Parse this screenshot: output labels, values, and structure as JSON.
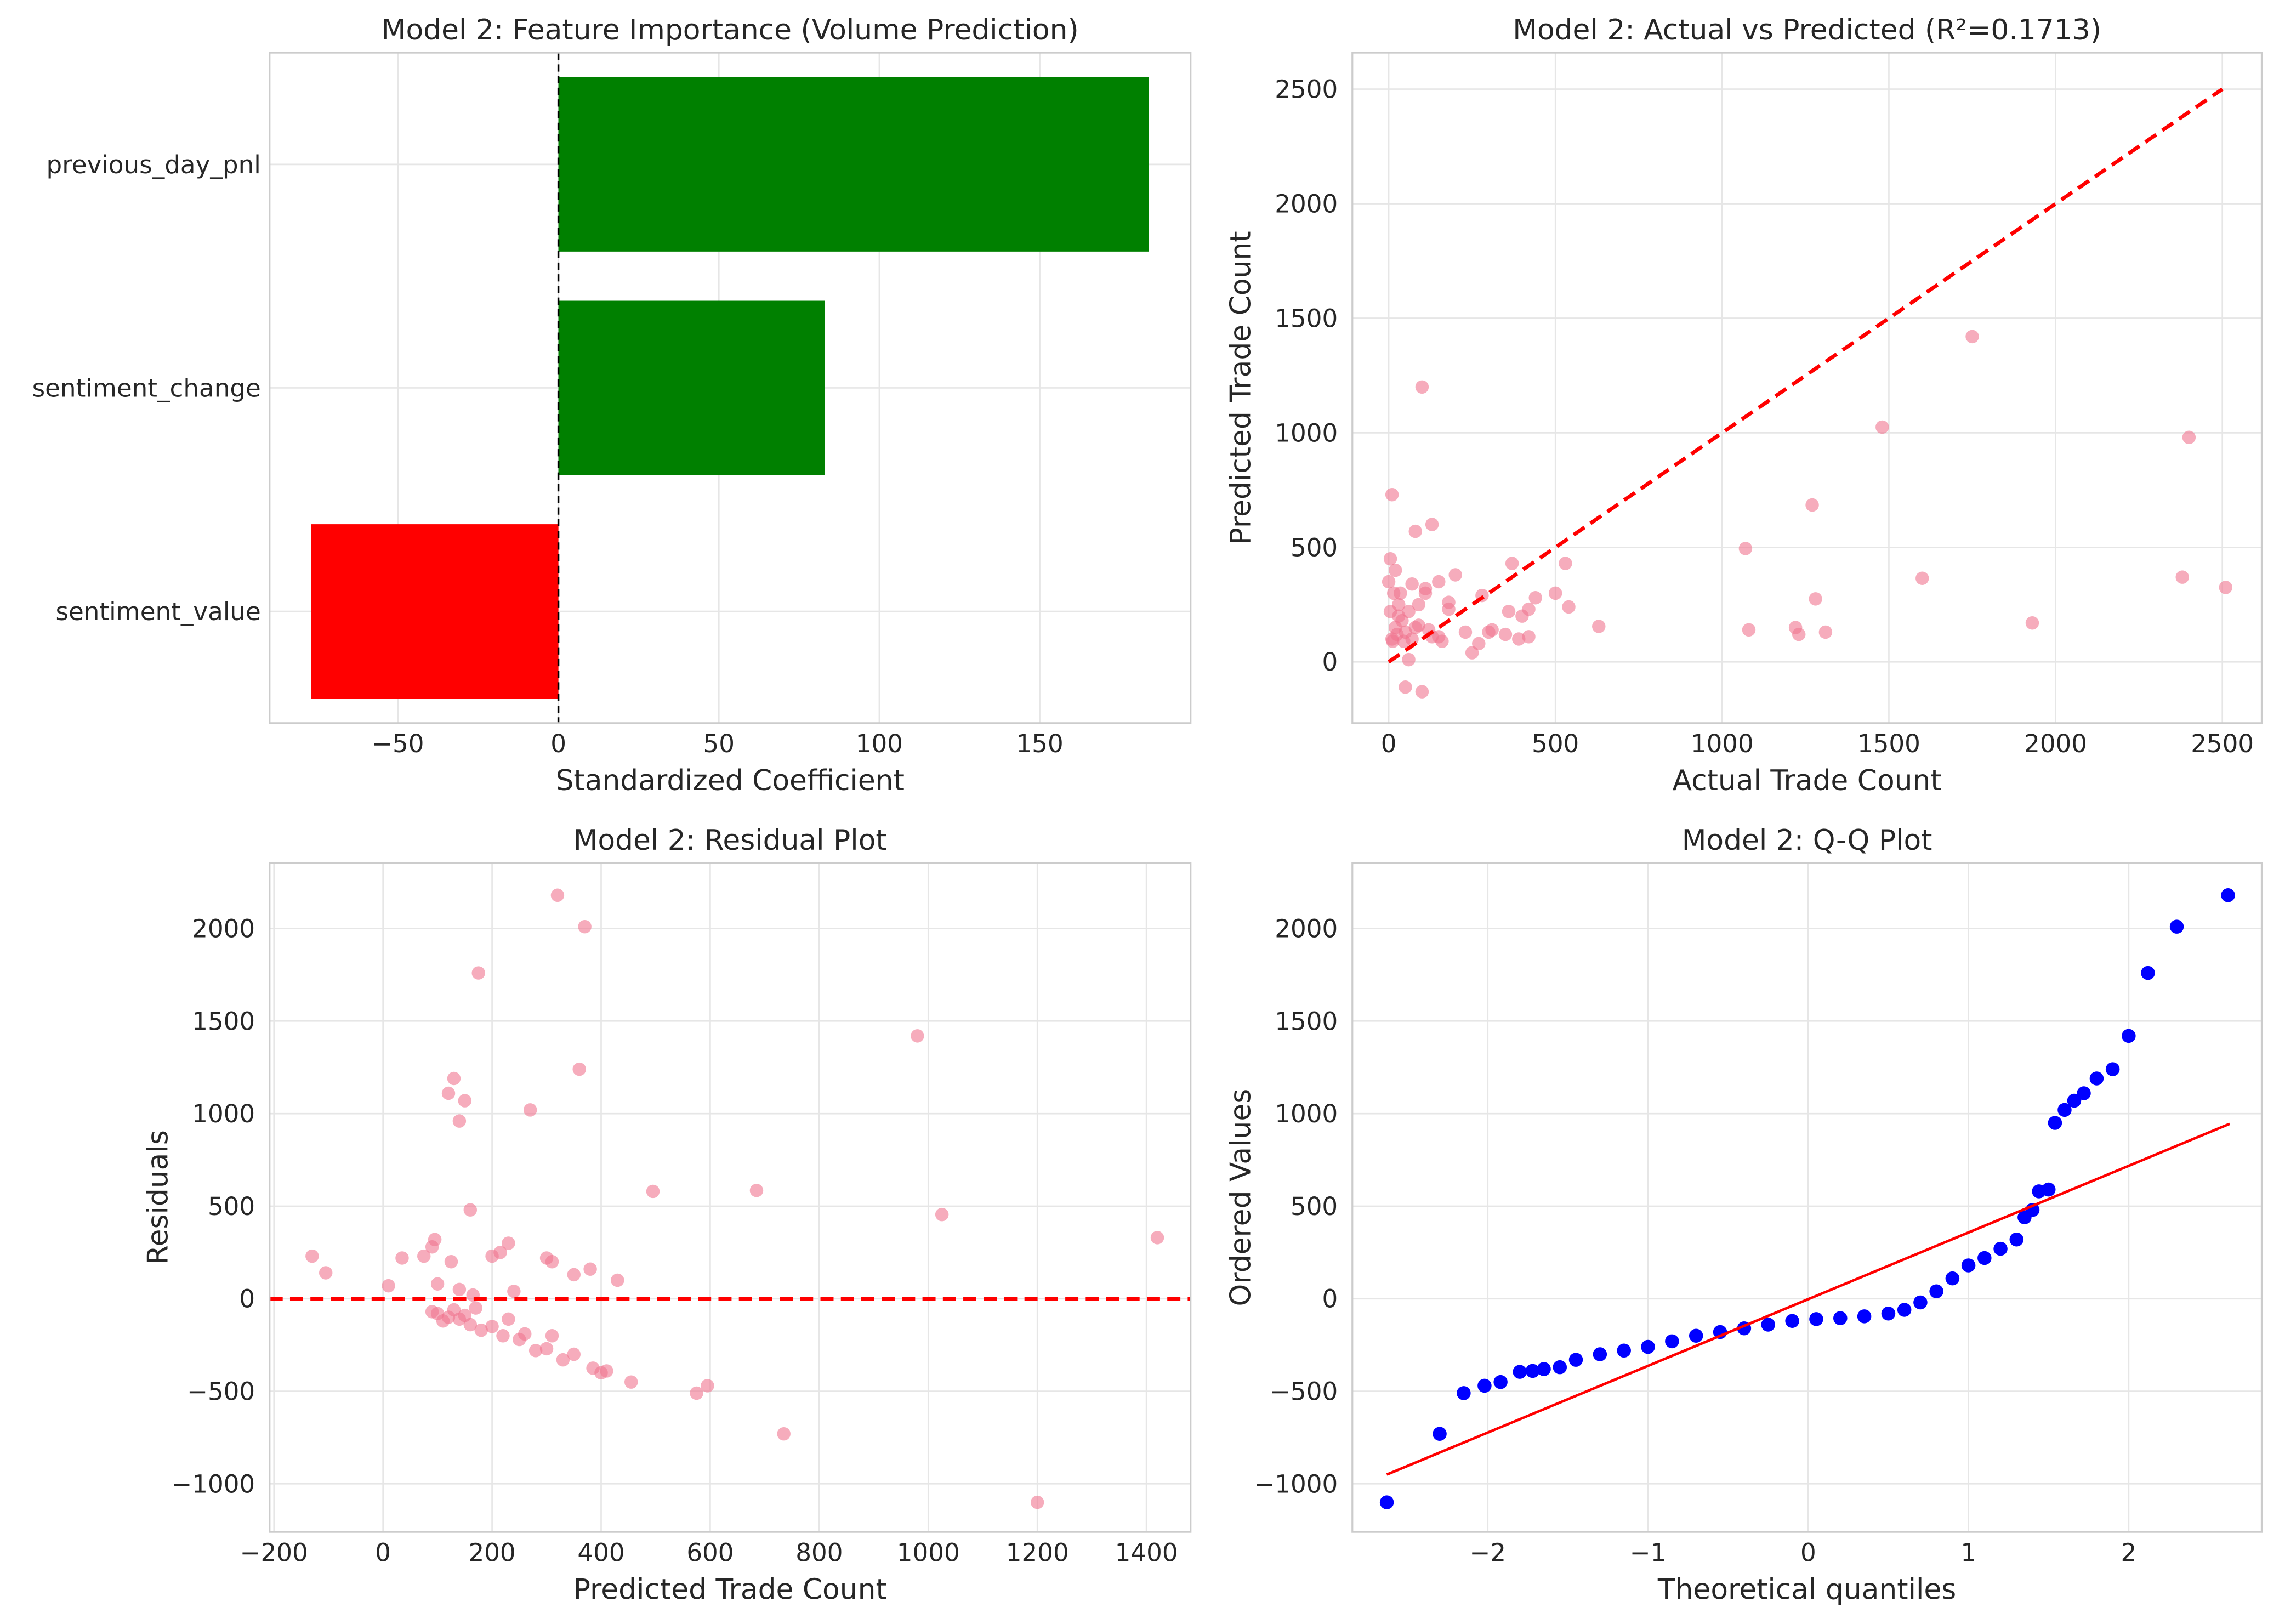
{
  "chart_data": [
    {
      "type": "bar",
      "orientation": "horizontal",
      "title": "Model 2: Feature Importance (Volume Prediction)",
      "xlabel": "Standardized Coefficient",
      "categories": [
        "previous_day_pnl",
        "sentiment_change",
        "sentiment_value"
      ],
      "values": [
        184,
        83,
        -77
      ],
      "colors": [
        "green",
        "green",
        "red"
      ],
      "xlim": [
        -90,
        197
      ],
      "xticks": [
        {
          "value": -50,
          "label": "−50"
        },
        0,
        50,
        100,
        150
      ],
      "vline": 0,
      "grid": true
    },
    {
      "type": "scatter",
      "title": "Model 2: Actual vs Predicted (R²=0.1713)",
      "xlabel": "Actual Trade Count",
      "ylabel": "Predicted Trade Count",
      "color": "#f07590",
      "x": [
        1750,
        1480,
        2400,
        1270,
        1070,
        1600,
        2380,
        2510,
        1280,
        1930,
        1080,
        1220,
        1230,
        1310,
        630,
        530,
        540,
        500,
        440,
        420,
        400,
        370,
        360,
        390,
        420,
        350,
        300,
        280,
        310,
        250,
        270,
        230,
        200,
        180,
        180,
        150,
        130,
        130,
        110,
        100,
        90,
        80,
        70,
        60,
        50,
        100,
        30,
        20,
        10,
        5,
        15,
        20,
        10,
        30,
        40,
        25,
        50,
        60,
        80,
        120,
        150,
        0,
        5,
        12,
        35,
        45,
        70,
        90,
        110,
        160
      ],
      "values": [
        1420,
        1025,
        980,
        685,
        495,
        365,
        370,
        325,
        275,
        170,
        140,
        150,
        120,
        130,
        155,
        430,
        240,
        300,
        280,
        230,
        200,
        430,
        220,
        100,
        110,
        120,
        130,
        290,
        140,
        40,
        80,
        130,
        380,
        260,
        230,
        350,
        600,
        110,
        300,
        1200,
        250,
        570,
        340,
        10,
        -110,
        -130,
        200,
        400,
        730,
        450,
        300,
        150,
        100,
        250,
        180,
        120,
        130,
        220,
        150,
        140,
        110,
        350,
        220,
        90,
        300,
        90,
        100,
        160,
        320,
        90
      ],
      "reference_line": {
        "x": [
          0,
          2500
        ],
        "y": [
          0,
          2500
        ]
      },
      "xlim": [
        -109,
        2618
      ],
      "ylim": [
        -267,
        2659
      ],
      "xticks": [
        0,
        500,
        1000,
        1500,
        2000,
        2500
      ],
      "yticks": [
        0,
        500,
        1000,
        1500,
        2000,
        2500
      ],
      "grid": true
    },
    {
      "type": "scatter",
      "title": "Model 2: Residual Plot",
      "xlabel": "Predicted Trade Count",
      "ylabel": "Residuals",
      "color": "#f07590",
      "x": [
        -130,
        -105,
        10,
        35,
        75,
        90,
        95,
        100,
        120,
        130,
        140,
        150,
        160,
        175,
        200,
        215,
        230,
        240,
        270,
        300,
        310,
        320,
        350,
        360,
        370,
        380,
        430,
        495,
        685,
        980,
        1025,
        1420,
        1200,
        735,
        595,
        575,
        455,
        410,
        385,
        400,
        330,
        350,
        300,
        280,
        250,
        220,
        200,
        180,
        160,
        140,
        120,
        100,
        90,
        110,
        130,
        150,
        170,
        230,
        260,
        310,
        140,
        125,
        165
      ],
      "values": [
        230,
        140,
        70,
        220,
        230,
        280,
        320,
        80,
        1110,
        1190,
        960,
        1070,
        480,
        1760,
        230,
        250,
        300,
        40,
        1020,
        220,
        200,
        2180,
        130,
        1240,
        2010,
        160,
        100,
        580,
        585,
        1420,
        455,
        330,
        -1100,
        -730,
        -470,
        -510,
        -450,
        -390,
        -375,
        -400,
        -330,
        -300,
        -270,
        -280,
        -220,
        -200,
        -150,
        -170,
        -140,
        -110,
        -100,
        -80,
        -70,
        -120,
        -60,
        -90,
        -50,
        -110,
        -190,
        -200,
        50,
        200,
        20
      ],
      "hline": 0,
      "xlim": [
        -208,
        1481
      ],
      "ylim": [
        -1260,
        2354
      ],
      "xticks": [
        {
          "value": -200,
          "label": "−200"
        },
        0,
        200,
        400,
        600,
        800,
        1000,
        1200,
        1400
      ],
      "yticks": [
        {
          "value": -1000,
          "label": "−1000"
        },
        {
          "value": -500,
          "label": "−500"
        },
        0,
        500,
        1000,
        1500,
        2000
      ],
      "grid": true
    },
    {
      "type": "qq",
      "title": "Model 2: Q-Q Plot",
      "xlabel": "Theoretical quantiles",
      "ylabel": "Ordered Values",
      "color": "blue",
      "x": [
        -2.63,
        -2.3,
        -2.15,
        -2.02,
        -1.92,
        -1.8,
        -1.72,
        -1.65,
        -1.55,
        -1.45,
        -1.3,
        -1.15,
        -1.0,
        -0.85,
        -0.7,
        -0.55,
        -0.4,
        -0.25,
        -0.1,
        0.05,
        0.2,
        0.35,
        0.5,
        0.6,
        0.7,
        0.8,
        0.9,
        1.0,
        1.1,
        1.2,
        1.3,
        1.35,
        1.4,
        1.44,
        1.5,
        1.54,
        1.6,
        1.66,
        1.72,
        1.8,
        1.9,
        2.0,
        2.12,
        2.3,
        2.62
      ],
      "values": [
        -1100,
        -730,
        -510,
        -470,
        -450,
        -395,
        -390,
        -380,
        -370,
        -330,
        -300,
        -280,
        -260,
        -230,
        -200,
        -180,
        -160,
        -140,
        -120,
        -110,
        -105,
        -95,
        -80,
        -60,
        -20,
        40,
        110,
        180,
        220,
        270,
        320,
        440,
        480,
        580,
        590,
        950,
        1020,
        1070,
        1110,
        1190,
        1240,
        1420,
        1760,
        2010,
        2180
      ],
      "fit_line": {
        "x": [
          -2.63,
          2.63
        ],
        "y": [
          -950,
          945
        ],
        "color": "red"
      },
      "xlim": [
        -2.845,
        2.83
      ],
      "ylim": [
        -1260,
        2354
      ],
      "xticks": [
        {
          "value": -2,
          "label": "−2"
        },
        {
          "value": -1,
          "label": "−1"
        },
        0,
        1,
        2
      ],
      "yticks": [
        {
          "value": -1000,
          "label": "−1000"
        },
        {
          "value": -500,
          "label": "−500"
        },
        0,
        500,
        1000,
        1500,
        2000
      ],
      "grid": true
    }
  ]
}
